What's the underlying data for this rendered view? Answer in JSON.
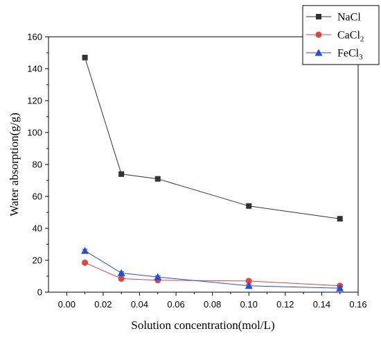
{
  "chart_data": {
    "type": "line",
    "xlabel": "Solution concentration(mol/L)",
    "ylabel": "Water absorption(g/g)",
    "xlim": [
      -0.01,
      0.16
    ],
    "ylim": [
      0,
      160
    ],
    "xticks": [
      "0.00",
      "0.02",
      "0.04",
      "0.06",
      "0.08",
      "0.10",
      "0.12",
      "0.14",
      "0.16"
    ],
    "yticks": [
      "0",
      "20",
      "40",
      "60",
      "80",
      "100",
      "120",
      "140",
      "160"
    ],
    "legend_position": "top-right, outside plot",
    "x": [
      0.01,
      0.03,
      0.05,
      0.1,
      0.15
    ],
    "series": [
      {
        "name": "NaCl",
        "label_main": "NaCl",
        "label_sub": "",
        "color": "#333333",
        "marker": "square",
        "values": [
          147,
          74,
          71,
          54,
          46
        ]
      },
      {
        "name": "CaCl2",
        "label_main": "CaCl",
        "label_sub": "2",
        "color": "#e0463c",
        "marker": "circle",
        "values": [
          18.5,
          8.5,
          7.5,
          7,
          4
        ]
      },
      {
        "name": "FeCl3",
        "label_main": "FeCl",
        "label_sub": "3",
        "color": "#1f4fe0",
        "marker": "triangle",
        "values": [
          26,
          12,
          9.5,
          4,
          2.5
        ]
      }
    ]
  }
}
